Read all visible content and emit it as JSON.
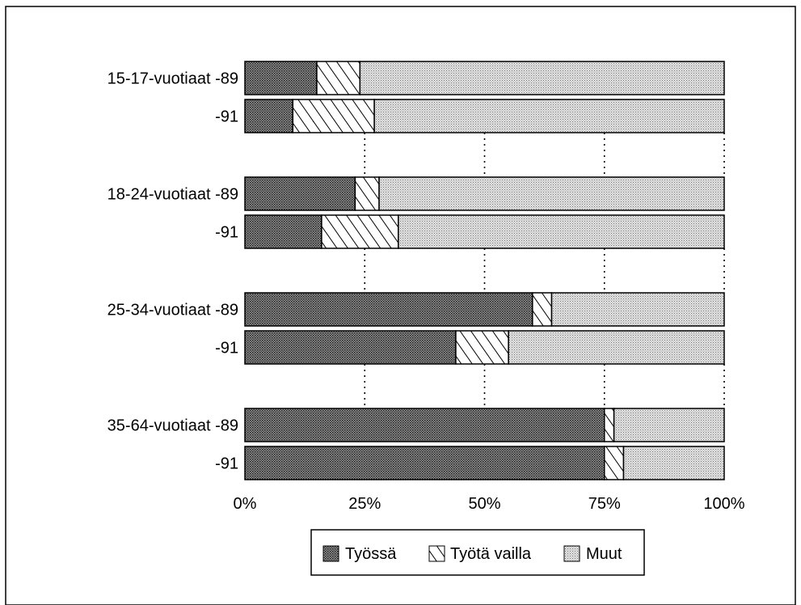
{
  "chart_data": {
    "type": "bar",
    "orientation": "horizontal",
    "stacked": true,
    "normalized_percent": true,
    "categories": [
      "15-17-vuotiaat -89",
      "-91",
      "18-24-vuotiaat -89",
      "-91",
      "25-34-vuotiaat -89",
      "-91",
      "35-64-vuotiaat -89",
      "-91"
    ],
    "series": [
      {
        "name": "Työssä",
        "values": [
          15,
          10,
          23,
          16,
          60,
          44,
          75,
          75
        ],
        "pattern": "dark-dots",
        "color": "#555555"
      },
      {
        "name": "Työtä vailla",
        "values": [
          9,
          17,
          5,
          16,
          4,
          11,
          2,
          4
        ],
        "pattern": "diagonal-hatch",
        "color": "#ffffff"
      },
      {
        "name": "Muut",
        "values": [
          76,
          73,
          72,
          68,
          36,
          45,
          23,
          21
        ],
        "pattern": "light-dots",
        "color": "#bbbbbb"
      }
    ],
    "xticks": [
      "0%",
      "25%",
      "50%",
      "75%",
      "100%"
    ],
    "xlim": [
      0,
      100
    ],
    "gridlines": "dotted vertical at 25%, 50%, 75%, 100% between groups",
    "legend_position": "bottom-center"
  }
}
